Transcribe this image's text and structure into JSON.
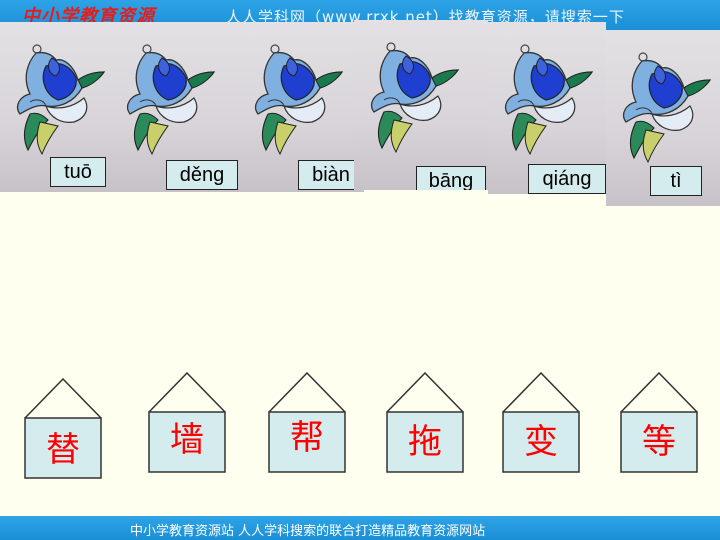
{
  "header": {
    "logo_text": "中小学教育资源",
    "slogan": "人人学科网（www.rrxk.net）找教育资源，请搜索一下"
  },
  "footer": {
    "text": "中小学教育资源站  人人学科搜索的联合打造精品教育资源网站"
  },
  "colors": {
    "bar_blue": "#1b8fd6",
    "pinyin_bg": "#d4ecee",
    "character_red": "#ff0000",
    "page_bg": "#fffff0"
  },
  "birds": [
    {
      "pinyin": "tuō",
      "icon": "stained-glass-bird-icon"
    },
    {
      "pinyin": "děng",
      "icon": "stained-glass-bird-icon"
    },
    {
      "pinyin": "biàn",
      "icon": "stained-glass-bird-icon"
    },
    {
      "pinyin": "bāng",
      "icon": "stained-glass-bird-icon"
    },
    {
      "pinyin": "qiáng",
      "icon": "stained-glass-bird-icon"
    },
    {
      "pinyin": "tì",
      "icon": "stained-glass-bird-icon"
    }
  ],
  "houses": [
    {
      "character": "替"
    },
    {
      "character": "墙"
    },
    {
      "character": "帮"
    },
    {
      "character": "拖"
    },
    {
      "character": "变"
    },
    {
      "character": "等"
    }
  ]
}
